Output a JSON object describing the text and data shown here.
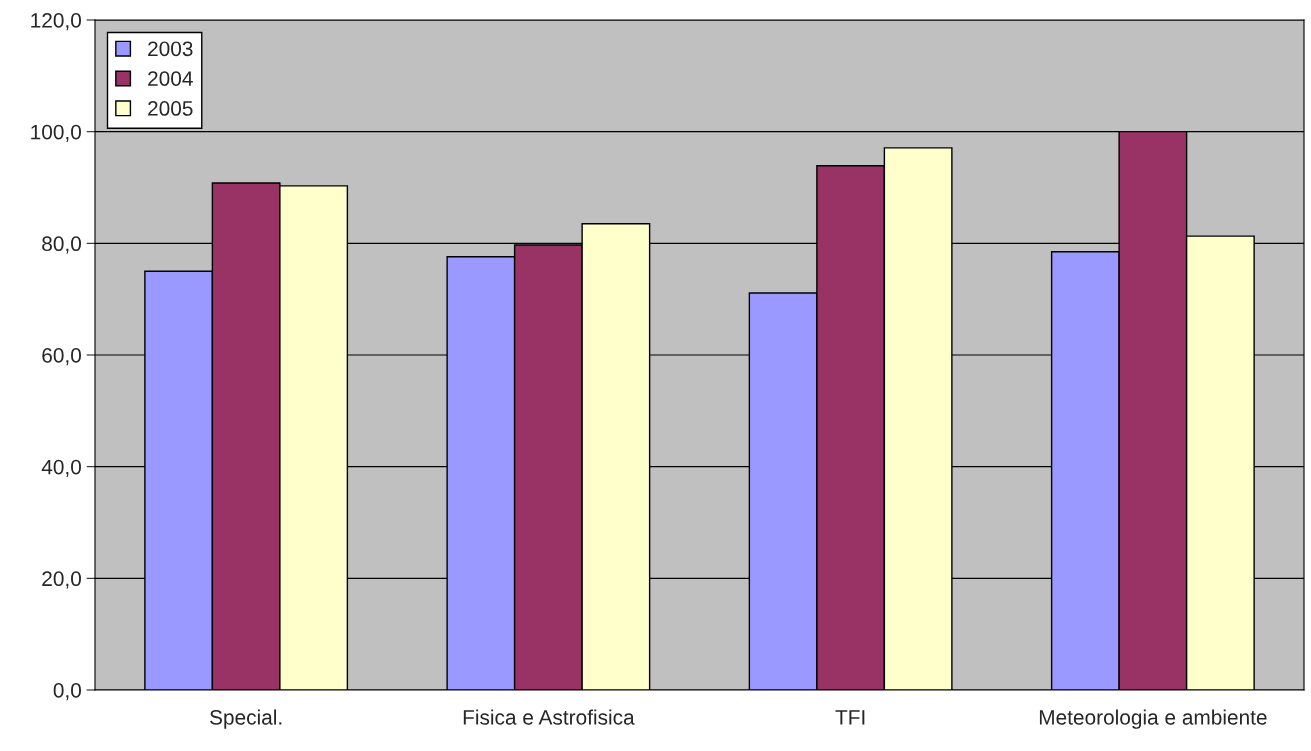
{
  "chart_data": {
    "type": "bar",
    "categories": [
      "Special.",
      "Fisica e Astrofisica",
      "TFI",
      "Meteorologia e ambiente"
    ],
    "series": [
      {
        "name": "2003",
        "color": "#9999ff",
        "values": [
          75.0,
          77.6,
          71.1,
          78.5
        ]
      },
      {
        "name": "2004",
        "color": "#993366",
        "values": [
          90.8,
          79.7,
          93.9,
          100.0
        ]
      },
      {
        "name": "2005",
        "color": "#ffffcc",
        "values": [
          90.3,
          83.5,
          97.1,
          81.3
        ]
      }
    ],
    "ylim": [
      0,
      120
    ],
    "yticks": [
      {
        "value": 0,
        "label": "0,0"
      },
      {
        "value": 20,
        "label": "20,0"
      },
      {
        "value": 40,
        "label": "40,0"
      },
      {
        "value": 60,
        "label": "60,0"
      },
      {
        "value": 80,
        "label": "80,0"
      },
      {
        "value": 100,
        "label": "100,0"
      },
      {
        "value": 120,
        "label": "120,0"
      }
    ],
    "grid": "y",
    "legend": "top left"
  }
}
